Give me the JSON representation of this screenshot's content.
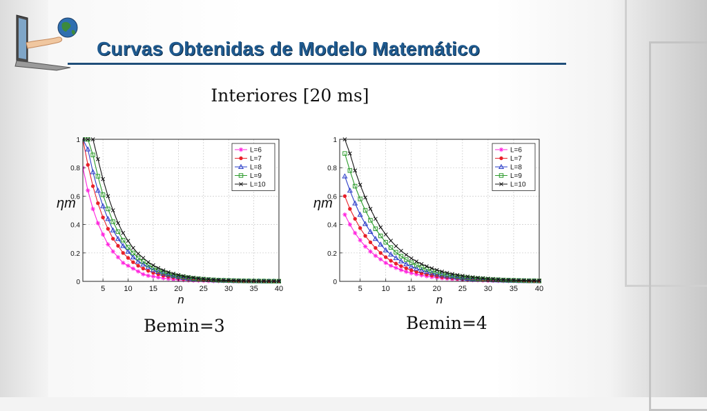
{
  "slide": {
    "title": "Curvas Obtenidas de Modelo Matemático",
    "subtitle": "Interiores [20 ms]",
    "colors": {
      "title": "#1f5a8f",
      "rule": "#1f4e79"
    },
    "logo_icon": "laptop-hand-globe-icon"
  },
  "chart_data": [
    {
      "type": "line",
      "caption": "Bemin=3",
      "xlabel": "n",
      "ylabel": "ηm",
      "xlim": [
        1,
        40
      ],
      "ylim": [
        0,
        1
      ],
      "xticks": [
        5,
        10,
        15,
        20,
        25,
        30,
        35,
        40
      ],
      "yticks": [
        0,
        0.2,
        0.4,
        0.6,
        0.8,
        1
      ],
      "grid": true,
      "legend_position": "top-right",
      "series": [
        {
          "name": "L=6",
          "color": "#ff22dd",
          "marker": "star",
          "x": [
            1,
            2,
            3,
            4,
            5,
            6,
            7,
            8,
            9,
            10,
            11,
            12,
            13,
            14,
            15,
            16,
            17,
            18,
            19,
            20,
            21,
            22,
            23,
            24,
            25,
            26,
            27,
            28,
            29,
            30,
            31,
            32,
            33,
            34,
            35,
            36,
            37,
            38,
            39,
            40
          ],
          "y": [
            0.8,
            0.64,
            0.51,
            0.41,
            0.33,
            0.26,
            0.21,
            0.17,
            0.13,
            0.11,
            0.09,
            0.07,
            0.05,
            0.04,
            0.035,
            0.028,
            0.022,
            0.018,
            0.014,
            0.011,
            0.009,
            0.007,
            0.006,
            0.005,
            0.004,
            0.003,
            0.002,
            0.002,
            0.002,
            0.001,
            0.001,
            0.001,
            0.001,
            0,
            0,
            0,
            0,
            0,
            0,
            0
          ]
        },
        {
          "name": "L=7",
          "color": "#e8202a",
          "marker": "dot",
          "x": [
            1,
            2,
            3,
            4,
            5,
            6,
            7,
            8,
            9,
            10,
            11,
            12,
            13,
            14,
            15,
            16,
            17,
            18,
            19,
            20,
            21,
            22,
            23,
            24,
            25,
            26,
            27,
            28,
            29,
            30,
            31,
            32,
            33,
            34,
            35,
            36,
            37,
            38,
            39,
            40
          ],
          "y": [
            1.0,
            0.82,
            0.67,
            0.55,
            0.45,
            0.37,
            0.3,
            0.25,
            0.2,
            0.165,
            0.135,
            0.11,
            0.09,
            0.074,
            0.06,
            0.05,
            0.04,
            0.033,
            0.027,
            0.022,
            0.018,
            0.015,
            0.012,
            0.01,
            0.008,
            0.007,
            0.005,
            0.004,
            0.004,
            0.003,
            0.002,
            0.002,
            0.002,
            0.001,
            0.001,
            0.001,
            0.001,
            0,
            0,
            0
          ]
        },
        {
          "name": "L=8",
          "color": "#2a3cc8",
          "marker": "triangle",
          "x": [
            1,
            2,
            3,
            4,
            5,
            6,
            7,
            8,
            9,
            10,
            11,
            12,
            13,
            14,
            15,
            16,
            17,
            18,
            19,
            20,
            21,
            22,
            23,
            24,
            25,
            26,
            27,
            28,
            29,
            30,
            31,
            32,
            33,
            34,
            35,
            36,
            37,
            38,
            39,
            40
          ],
          "y": [
            1.0,
            0.93,
            0.77,
            0.64,
            0.53,
            0.44,
            0.36,
            0.3,
            0.25,
            0.21,
            0.17,
            0.14,
            0.12,
            0.1,
            0.08,
            0.067,
            0.055,
            0.046,
            0.038,
            0.031,
            0.026,
            0.021,
            0.018,
            0.015,
            0.012,
            0.01,
            0.008,
            0.007,
            0.006,
            0.005,
            0.004,
            0.003,
            0.003,
            0.002,
            0.002,
            0.002,
            0.001,
            0.001,
            0.001,
            0.001
          ]
        },
        {
          "name": "L=9",
          "color": "#2a9a2a",
          "marker": "square",
          "x": [
            1,
            2,
            3,
            4,
            5,
            6,
            7,
            8,
            9,
            10,
            11,
            12,
            13,
            14,
            15,
            16,
            17,
            18,
            19,
            20,
            21,
            22,
            23,
            24,
            25,
            26,
            27,
            28,
            29,
            30,
            31,
            32,
            33,
            34,
            35,
            36,
            37,
            38,
            39,
            40
          ],
          "y": [
            1.0,
            1.0,
            0.89,
            0.74,
            0.61,
            0.51,
            0.42,
            0.35,
            0.29,
            0.24,
            0.2,
            0.165,
            0.14,
            0.115,
            0.095,
            0.079,
            0.065,
            0.054,
            0.045,
            0.037,
            0.031,
            0.026,
            0.021,
            0.018,
            0.015,
            0.012,
            0.01,
            0.008,
            0.007,
            0.006,
            0.005,
            0.004,
            0.003,
            0.003,
            0.002,
            0.002,
            0.002,
            0.001,
            0.001,
            0.001
          ]
        },
        {
          "name": "L=10",
          "color": "#111111",
          "marker": "x",
          "x": [
            1,
            2,
            3,
            4,
            5,
            6,
            7,
            8,
            9,
            10,
            11,
            12,
            13,
            14,
            15,
            16,
            17,
            18,
            19,
            20,
            21,
            22,
            23,
            24,
            25,
            26,
            27,
            28,
            29,
            30,
            31,
            32,
            33,
            34,
            35,
            36,
            37,
            38,
            39,
            40
          ],
          "y": [
            1.0,
            1.0,
            1.0,
            0.86,
            0.72,
            0.6,
            0.5,
            0.41,
            0.34,
            0.285,
            0.235,
            0.195,
            0.165,
            0.135,
            0.113,
            0.094,
            0.078,
            0.065,
            0.054,
            0.045,
            0.037,
            0.031,
            0.026,
            0.021,
            0.018,
            0.015,
            0.012,
            0.01,
            0.008,
            0.007,
            0.006,
            0.005,
            0.004,
            0.003,
            0.003,
            0.002,
            0.002,
            0.002,
            0.001,
            0.001
          ]
        }
      ]
    },
    {
      "type": "line",
      "caption": "Bemin=4",
      "xlabel": "n",
      "ylabel": "ηm",
      "xlim": [
        1,
        40
      ],
      "ylim": [
        0,
        1
      ],
      "xticks": [
        5,
        10,
        15,
        20,
        25,
        30,
        35,
        40
      ],
      "yticks": [
        0,
        0.2,
        0.4,
        0.6,
        0.8,
        1
      ],
      "grid": true,
      "legend_position": "top-right",
      "series": [
        {
          "name": "L=6",
          "color": "#ff22dd",
          "marker": "star",
          "x": [
            2,
            3,
            4,
            5,
            6,
            7,
            8,
            9,
            10,
            11,
            12,
            13,
            14,
            15,
            16,
            17,
            18,
            19,
            20,
            21,
            22,
            23,
            24,
            25,
            26,
            27,
            28,
            29,
            30,
            31,
            32,
            33,
            34,
            35,
            36,
            37,
            38,
            39,
            40
          ],
          "y": [
            0.47,
            0.4,
            0.34,
            0.29,
            0.245,
            0.21,
            0.18,
            0.155,
            0.13,
            0.11,
            0.095,
            0.08,
            0.068,
            0.058,
            0.05,
            0.043,
            0.036,
            0.031,
            0.026,
            0.022,
            0.019,
            0.016,
            0.014,
            0.012,
            0.01,
            0.009,
            0.008,
            0.006,
            0.005,
            0.005,
            0.004,
            0.003,
            0.003,
            0.003,
            0.002,
            0.002,
            0.002,
            0.001,
            0.001
          ]
        },
        {
          "name": "L=7",
          "color": "#e8202a",
          "marker": "dot",
          "x": [
            2,
            3,
            4,
            5,
            6,
            7,
            8,
            9,
            10,
            11,
            12,
            13,
            14,
            15,
            16,
            17,
            18,
            19,
            20,
            21,
            22,
            23,
            24,
            25,
            26,
            27,
            28,
            29,
            30,
            31,
            32,
            33,
            34,
            35,
            36,
            37,
            38,
            39,
            40
          ],
          "y": [
            0.6,
            0.51,
            0.44,
            0.375,
            0.32,
            0.275,
            0.235,
            0.2,
            0.17,
            0.145,
            0.125,
            0.107,
            0.092,
            0.078,
            0.067,
            0.057,
            0.049,
            0.042,
            0.036,
            0.03,
            0.026,
            0.022,
            0.019,
            0.016,
            0.014,
            0.012,
            0.01,
            0.009,
            0.007,
            0.006,
            0.005,
            0.005,
            0.004,
            0.003,
            0.003,
            0.003,
            0.002,
            0.002,
            0.002
          ]
        },
        {
          "name": "L=8",
          "color": "#2a3cc8",
          "marker": "triangle",
          "x": [
            2,
            3,
            4,
            5,
            6,
            7,
            8,
            9,
            10,
            11,
            12,
            13,
            14,
            15,
            16,
            17,
            18,
            19,
            20,
            21,
            22,
            23,
            24,
            25,
            26,
            27,
            28,
            29,
            30,
            31,
            32,
            33,
            34,
            35,
            36,
            37,
            38,
            39,
            40
          ],
          "y": [
            0.74,
            0.64,
            0.55,
            0.47,
            0.405,
            0.35,
            0.3,
            0.26,
            0.22,
            0.19,
            0.165,
            0.142,
            0.122,
            0.105,
            0.09,
            0.078,
            0.067,
            0.058,
            0.05,
            0.043,
            0.037,
            0.032,
            0.027,
            0.023,
            0.02,
            0.017,
            0.015,
            0.013,
            0.011,
            0.009,
            0.008,
            0.007,
            0.006,
            0.005,
            0.004,
            0.004,
            0.003,
            0.003,
            0.002
          ]
        },
        {
          "name": "L=9",
          "color": "#2a9a2a",
          "marker": "square",
          "x": [
            2,
            3,
            4,
            5,
            6,
            7,
            8,
            9,
            10,
            11,
            12,
            13,
            14,
            15,
            16,
            17,
            18,
            19,
            20,
            21,
            22,
            23,
            24,
            25,
            26,
            27,
            28,
            29,
            30,
            31,
            32,
            33,
            34,
            35,
            36,
            37,
            38,
            39,
            40
          ],
          "y": [
            0.9,
            0.78,
            0.67,
            0.58,
            0.5,
            0.43,
            0.37,
            0.32,
            0.275,
            0.238,
            0.205,
            0.177,
            0.153,
            0.132,
            0.114,
            0.098,
            0.085,
            0.073,
            0.063,
            0.054,
            0.047,
            0.04,
            0.035,
            0.03,
            0.026,
            0.022,
            0.019,
            0.017,
            0.014,
            0.012,
            0.011,
            0.009,
            0.008,
            0.007,
            0.006,
            0.005,
            0.004,
            0.004,
            0.003
          ]
        },
        {
          "name": "L=10",
          "color": "#111111",
          "marker": "x",
          "x": [
            2,
            3,
            4,
            5,
            6,
            7,
            8,
            9,
            10,
            11,
            12,
            13,
            14,
            15,
            16,
            17,
            18,
            19,
            20,
            21,
            22,
            23,
            24,
            25,
            26,
            27,
            28,
            29,
            30,
            31,
            32,
            33,
            34,
            35,
            36,
            37,
            38,
            39,
            40
          ],
          "y": [
            1.0,
            0.9,
            0.78,
            0.68,
            0.59,
            0.51,
            0.44,
            0.38,
            0.33,
            0.286,
            0.248,
            0.215,
            0.187,
            0.162,
            0.14,
            0.122,
            0.106,
            0.092,
            0.08,
            0.069,
            0.06,
            0.052,
            0.045,
            0.039,
            0.034,
            0.029,
            0.025,
            0.022,
            0.019,
            0.017,
            0.014,
            0.012,
            0.011,
            0.009,
            0.008,
            0.007,
            0.006,
            0.005,
            0.005
          ]
        }
      ]
    }
  ]
}
